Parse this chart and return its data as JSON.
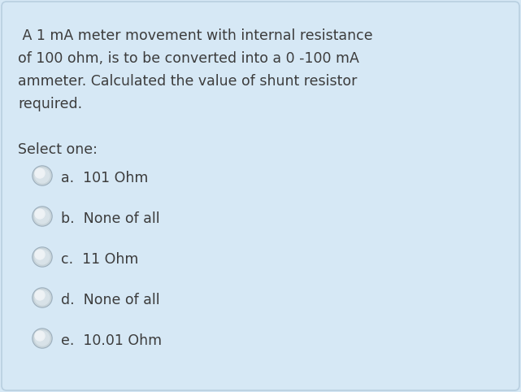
{
  "background_color": "#d6e8f5",
  "border_color": "#b8cfe0",
  "question_text": " A 1 mA meter movement with internal resistance\nof 100 ohm, is to be converted into a 0 -100 mA\nammeter. Calculated the value of shunt resistor\nrequired.",
  "select_label": "Select one:",
  "options": [
    {
      "letter": "a",
      "text": "101 Ohm"
    },
    {
      "letter": "b",
      "text": "None of all"
    },
    {
      "letter": "c",
      "text": "11 Ohm"
    },
    {
      "letter": "d",
      "text": "None of all"
    },
    {
      "letter": "e",
      "text": "10.01 Ohm"
    }
  ],
  "question_fontsize": 12.5,
  "select_fontsize": 12.5,
  "option_fontsize": 12.5,
  "text_color": "#3c3c3c",
  "radio_border_color": "#a8bcc8",
  "radio_fill_top": "#e8eef2",
  "radio_fill_bottom": "#c8d4da",
  "radio_center_color": "#dde6ec"
}
